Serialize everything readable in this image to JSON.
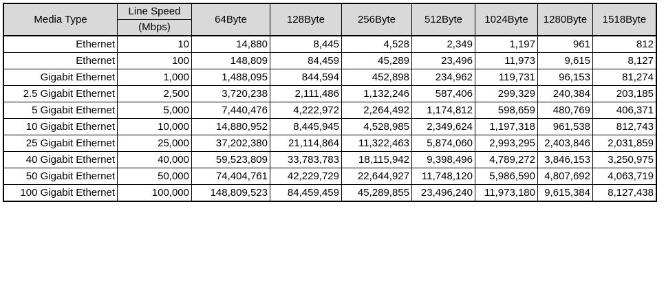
{
  "header": {
    "media_type": "Media Type",
    "line_speed_top": "Line Speed",
    "line_speed_bottom": "(Mbps)",
    "sizes": [
      "64Byte",
      "128Byte",
      "256Byte",
      "512Byte",
      "1024Byte",
      "1280Byte",
      "1518Byte"
    ]
  },
  "rows": [
    {
      "media": "Ethernet",
      "speed": "10",
      "values": [
        "14,880",
        "8,445",
        "4,528",
        "2,349",
        "1,197",
        "961",
        "812"
      ]
    },
    {
      "media": "Ethernet",
      "speed": "100",
      "values": [
        "148,809",
        "84,459",
        "45,289",
        "23,496",
        "11,973",
        "9,615",
        "8,127"
      ]
    },
    {
      "media": "Gigabit Ethernet",
      "speed": "1,000",
      "values": [
        "1,488,095",
        "844,594",
        "452,898",
        "234,962",
        "119,731",
        "96,153",
        "81,274"
      ]
    },
    {
      "media": "2.5 Gigabit Ethernet",
      "speed": "2,500",
      "values": [
        "3,720,238",
        "2,111,486",
        "1,132,246",
        "587,406",
        "299,329",
        "240,384",
        "203,185"
      ]
    },
    {
      "media": "5 Gigabit Ethernet",
      "speed": "5,000",
      "values": [
        "7,440,476",
        "4,222,972",
        "2,264,492",
        "1,174,812",
        "598,659",
        "480,769",
        "406,371"
      ]
    },
    {
      "media": "10 Gigabit Ethernet",
      "speed": "10,000",
      "values": [
        "14,880,952",
        "8,445,945",
        "4,528,985",
        "2,349,624",
        "1,197,318",
        "961,538",
        "812,743"
      ]
    },
    {
      "media": "25 Gigabit Ethernet",
      "speed": "25,000",
      "values": [
        "37,202,380",
        "21,114,864",
        "11,322,463",
        "5,874,060",
        "2,993,295",
        "2,403,846",
        "2,031,859"
      ]
    },
    {
      "media": "40 Gigabit Ethernet",
      "speed": "40,000",
      "values": [
        "59,523,809",
        "33,783,783",
        "18,115,942",
        "9,398,496",
        "4,789,272",
        "3,846,153",
        "3,250,975"
      ]
    },
    {
      "media": "50 Gigabit Ethernet",
      "speed": "50,000",
      "values": [
        "74,404,761",
        "42,229,729",
        "22,644,927",
        "11,748,120",
        "5,986,590",
        "4,807,692",
        "4,063,719"
      ]
    },
    {
      "media": "100 Gigabit Ethernet",
      "speed": "100,000",
      "values": [
        "148,809,523",
        "84,459,459",
        "45,289,855",
        "23,496,240",
        "11,973,180",
        "9,615,384",
        "8,127,438"
      ]
    }
  ]
}
